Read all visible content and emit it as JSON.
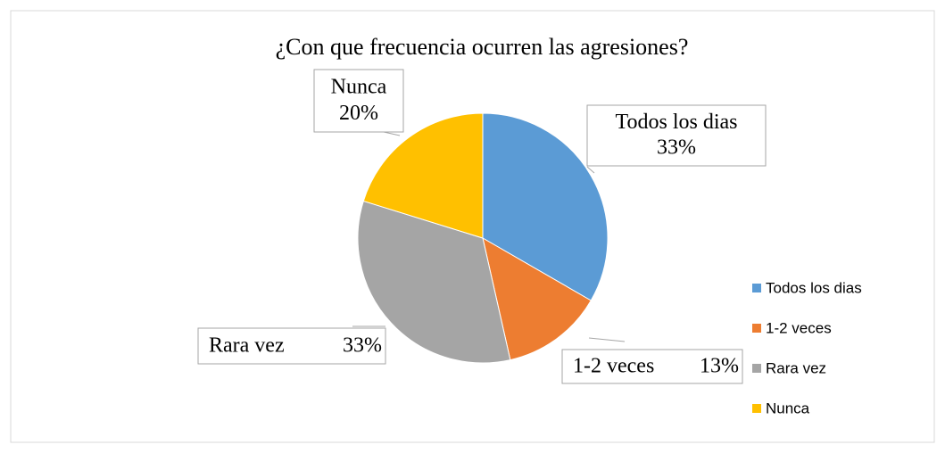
{
  "chart_data": {
    "type": "pie",
    "title": "¿Con que frecuencia ocurren las agresiones?",
    "categories": [
      "Todos los dias",
      "1-2 veces",
      "Rara vez",
      "Nunca"
    ],
    "values": [
      33,
      13,
      33,
      20
    ],
    "value_labels": [
      "33%",
      "13%",
      "33%",
      "20%"
    ],
    "colors": [
      "#5b9bd5",
      "#ed7d31",
      "#a5a5a5",
      "#ffc000"
    ],
    "legend": "right"
  }
}
